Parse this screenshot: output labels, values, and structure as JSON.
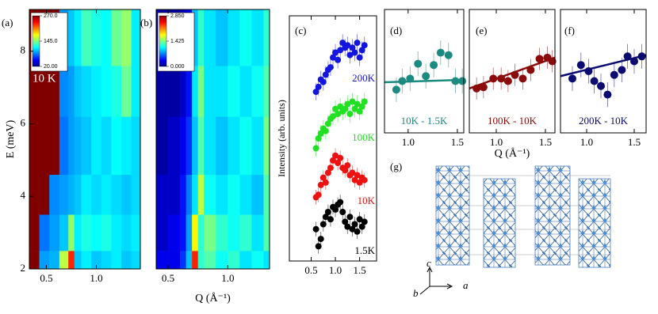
{
  "chart_data": [
    {
      "type": "heatmap",
      "label": "(a)",
      "annotation": "10 K",
      "ylabel": "E (meV)",
      "xlim": [
        0.33,
        1.44
      ],
      "ylim": [
        2,
        9.15
      ],
      "xticks": [
        0.5,
        {
          "value": 1,
          "label": "1.0"
        }
      ],
      "yticks": [
        2,
        4,
        6,
        8
      ],
      "colormap": "jet",
      "x_edges": [
        0.33,
        0.43,
        0.53,
        0.63,
        0.72,
        0.78,
        0.85,
        0.95,
        1.05,
        1.15,
        1.25,
        1.35,
        1.44
      ],
      "y_edges": [
        2,
        2.5,
        3.5,
        4.6,
        6.2,
        7.6,
        9.15
      ],
      "z": [
        [
          270,
          90,
          95,
          160,
          230,
          100,
          110,
          100,
          105,
          110,
          100,
          105
        ],
        [
          270,
          80,
          90,
          100,
          150,
          110,
          120,
          115,
          120,
          110,
          105,
          110
        ],
        [
          270,
          270,
          85,
          90,
          95,
          100,
          110,
          105,
          110,
          105,
          100,
          105
        ],
        [
          270,
          270,
          270,
          80,
          90,
          95,
          100,
          110,
          105,
          115,
          110,
          105
        ],
        [
          270,
          270,
          270,
          85,
          90,
          100,
          105,
          110,
          115,
          120,
          140,
          110
        ],
        [
          270,
          270,
          270,
          90,
          100,
          110,
          130,
          120,
          115,
          140,
          150,
          110
        ]
      ],
      "colorbar": {
        "lim": [
          20,
          270
        ],
        "ticks": [
          {
            "value": 270,
            "label": "270.0"
          },
          {
            "value": 145,
            "label": "145.0"
          },
          {
            "value": 20,
            "label": "20.00"
          }
        ]
      }
    },
    {
      "type": "heatmap",
      "label": "(b)",
      "xlabel": "Q (Å⁻¹)",
      "xlim": [
        0.4,
        1.35
      ],
      "ylim": [
        2,
        9.15
      ],
      "xticks": [
        0.5,
        {
          "value": 1,
          "label": "1.0"
        }
      ],
      "colormap": "jet",
      "x_edges": [
        0.4,
        0.5,
        0.6,
        0.65,
        0.7,
        0.75,
        0.8,
        0.9,
        1.0,
        1.1,
        1.2,
        1.3,
        1.35
      ],
      "y_edges": [
        2,
        2.5,
        3.5,
        4.6,
        6.2,
        7.6,
        9.15
      ],
      "z": [
        [
          0.3,
          0.3,
          0.5,
          0.9,
          2.4,
          1.2,
          1.3,
          1.1,
          1.2,
          1.0,
          1.1,
          1.0
        ],
        [
          0.2,
          0.3,
          0.4,
          0.8,
          1.8,
          1.2,
          1.4,
          1.2,
          1.1,
          1.2,
          1.0,
          1.3
        ],
        [
          0.2,
          0.2,
          0.4,
          0.7,
          1.0,
          1.6,
          1.1,
          1.0,
          1.1,
          1.0,
          0.9,
          1.3
        ],
        [
          0.1,
          0.2,
          0.3,
          0.5,
          0.9,
          1.3,
          1.0,
          0.9,
          1.0,
          1.1,
          1.0,
          1.4
        ],
        [
          0.1,
          0.1,
          0.2,
          0.4,
          1.0,
          1.4,
          1.0,
          1.0,
          1.1,
          1.0,
          1.1,
          1.3
        ],
        [
          0.1,
          0.1,
          0.2,
          0.3,
          0.9,
          1.2,
          1.0,
          0.9,
          1.0,
          1.1,
          1.0,
          1.2
        ]
      ],
      "colorbar": {
        "lim": [
          0,
          2.85
        ],
        "ticks": [
          {
            "value": 2.85,
            "label": "2.850"
          },
          {
            "value": 1.425,
            "label": "1.425"
          },
          {
            "value": 0,
            "label": "0.000"
          }
        ]
      }
    },
    {
      "type": "scatter",
      "label": "(c)",
      "ylabel": "Intensity (arb. units)",
      "xlim": [
        0.05,
        1.85
      ],
      "ylim": [
        0,
        10
      ],
      "xticks": [
        0.5,
        {
          "value": 1,
          "label": "1.0"
        },
        1.5
      ],
      "x": [
        0.6,
        0.65,
        0.7,
        0.75,
        0.8,
        0.85,
        0.9,
        0.95,
        1.0,
        1.05,
        1.1,
        1.15,
        1.2,
        1.25,
        1.3,
        1.35,
        1.4,
        1.45,
        1.5,
        1.55,
        1.6
      ],
      "series": [
        {
          "name": "200K",
          "color": "#1515e0",
          "error": 0.35,
          "values": [
            6.9,
            7.1,
            7.4,
            7.3,
            7.6,
            7.8,
            7.9,
            8.3,
            8.5,
            8.2,
            8.6,
            8.9,
            8.7,
            8.8,
            8.4,
            8.7,
            8.5,
            8.9,
            8.3,
            8.6,
            8.8
          ]
        },
        {
          "name": "100K",
          "color": "#22e022",
          "error": 0.35,
          "values": [
            4.6,
            5.0,
            5.2,
            5.4,
            5.3,
            5.6,
            5.8,
            5.9,
            6.2,
            6.0,
            6.3,
            6.1,
            6.2,
            6.4,
            6.0,
            6.5,
            6.2,
            6.4,
            6.1,
            6.3,
            6.5
          ]
        },
        {
          "name": "10K",
          "color": "#ee1111",
          "error": 0.3,
          "values": [
            2.6,
            2.7,
            3.1,
            3.4,
            3.2,
            3.6,
            3.8,
            4.1,
            4.3,
            4.0,
            4.2,
            3.8,
            3.7,
            3.9,
            3.5,
            3.6,
            3.3,
            3.5,
            3.2,
            3.4,
            3.3
          ]
        },
        {
          "name": "1.5K",
          "color": "#000000",
          "error": 0.3,
          "values": [
            1.3,
            0.6,
            0.9,
            1.5,
            1.8,
            2.0,
            1.7,
            2.2,
            2.1,
            2.3,
            2.4,
            2.0,
            1.6,
            1.4,
            1.8,
            1.3,
            1.5,
            1.2,
            1.7,
            1.4,
            1.6
          ]
        }
      ]
    },
    {
      "type": "scatter",
      "label": "(d)",
      "annotation": "10K - 1.5K",
      "xlim": [
        0.76,
        1.565
      ],
      "ylim": [
        0,
        10
      ],
      "xticks": [
        {
          "value": 1,
          "label": "1.0"
        },
        1.5
      ],
      "series": [
        {
          "color": "#1b8a80",
          "error": 1.0,
          "x": [
            0.88,
            0.94,
            1.02,
            1.1,
            1.18,
            1.26,
            1.33,
            1.41,
            1.48,
            1.55
          ],
          "values": [
            3.5,
            4.2,
            4.4,
            5.6,
            4.6,
            5.5,
            6.5,
            6.3,
            4.2,
            4.2
          ]
        }
      ],
      "fit": {
        "color": "#1b8a80",
        "x": [
          0.76,
          1.565
        ],
        "values": [
          4.1,
          4.3
        ]
      }
    },
    {
      "type": "scatter",
      "label": "(e)",
      "annotation": "100K - 10K",
      "xlabel": "Q (Å⁻¹)",
      "xlim": [
        0.726,
        1.597
      ],
      "ylim": [
        0,
        10
      ],
      "xticks": [
        {
          "value": 1,
          "label": "1.0"
        },
        1.5
      ],
      "series": [
        {
          "color": "#8b0a0a",
          "error": 0.9,
          "x": [
            0.8,
            0.87,
            0.97,
            1.05,
            1.12,
            1.19,
            1.27,
            1.35,
            1.44,
            1.52,
            1.57
          ],
          "values": [
            3.6,
            3.7,
            4.4,
            4.4,
            4.2,
            4.7,
            4.4,
            5.1,
            6.0,
            6.1,
            5.8
          ]
        }
      ],
      "fit": {
        "color": "#8b0a0a",
        "x": [
          0.726,
          1.597
        ],
        "values": [
          3.6,
          6.1
        ]
      }
    },
    {
      "type": "scatter",
      "label": "(f)",
      "annotation": "200K - 10K",
      "xlim": [
        0.725,
        1.625
      ],
      "ylim": [
        0,
        10
      ],
      "xticks": [
        {
          "value": 1,
          "label": "1.0"
        },
        1.5
      ],
      "series": [
        {
          "color": "#0a0a70",
          "error": 1.0,
          "x": [
            0.85,
            0.94,
            1.02,
            1.08,
            1.15,
            1.22,
            1.29,
            1.37,
            1.43,
            1.5,
            1.58
          ],
          "values": [
            4.4,
            5.5,
            5.0,
            4.2,
            3.8,
            3.1,
            4.7,
            5.1,
            6.2,
            5.8,
            6.2
          ]
        }
      ],
      "fit": {
        "color": "#0a0a70",
        "x": [
          0.725,
          1.625
        ],
        "values": [
          4.6,
          6.3
        ]
      }
    }
  ],
  "structure": {
    "label": "(g)",
    "axes": {
      "b": "b",
      "c": "c",
      "a": "a"
    }
  }
}
